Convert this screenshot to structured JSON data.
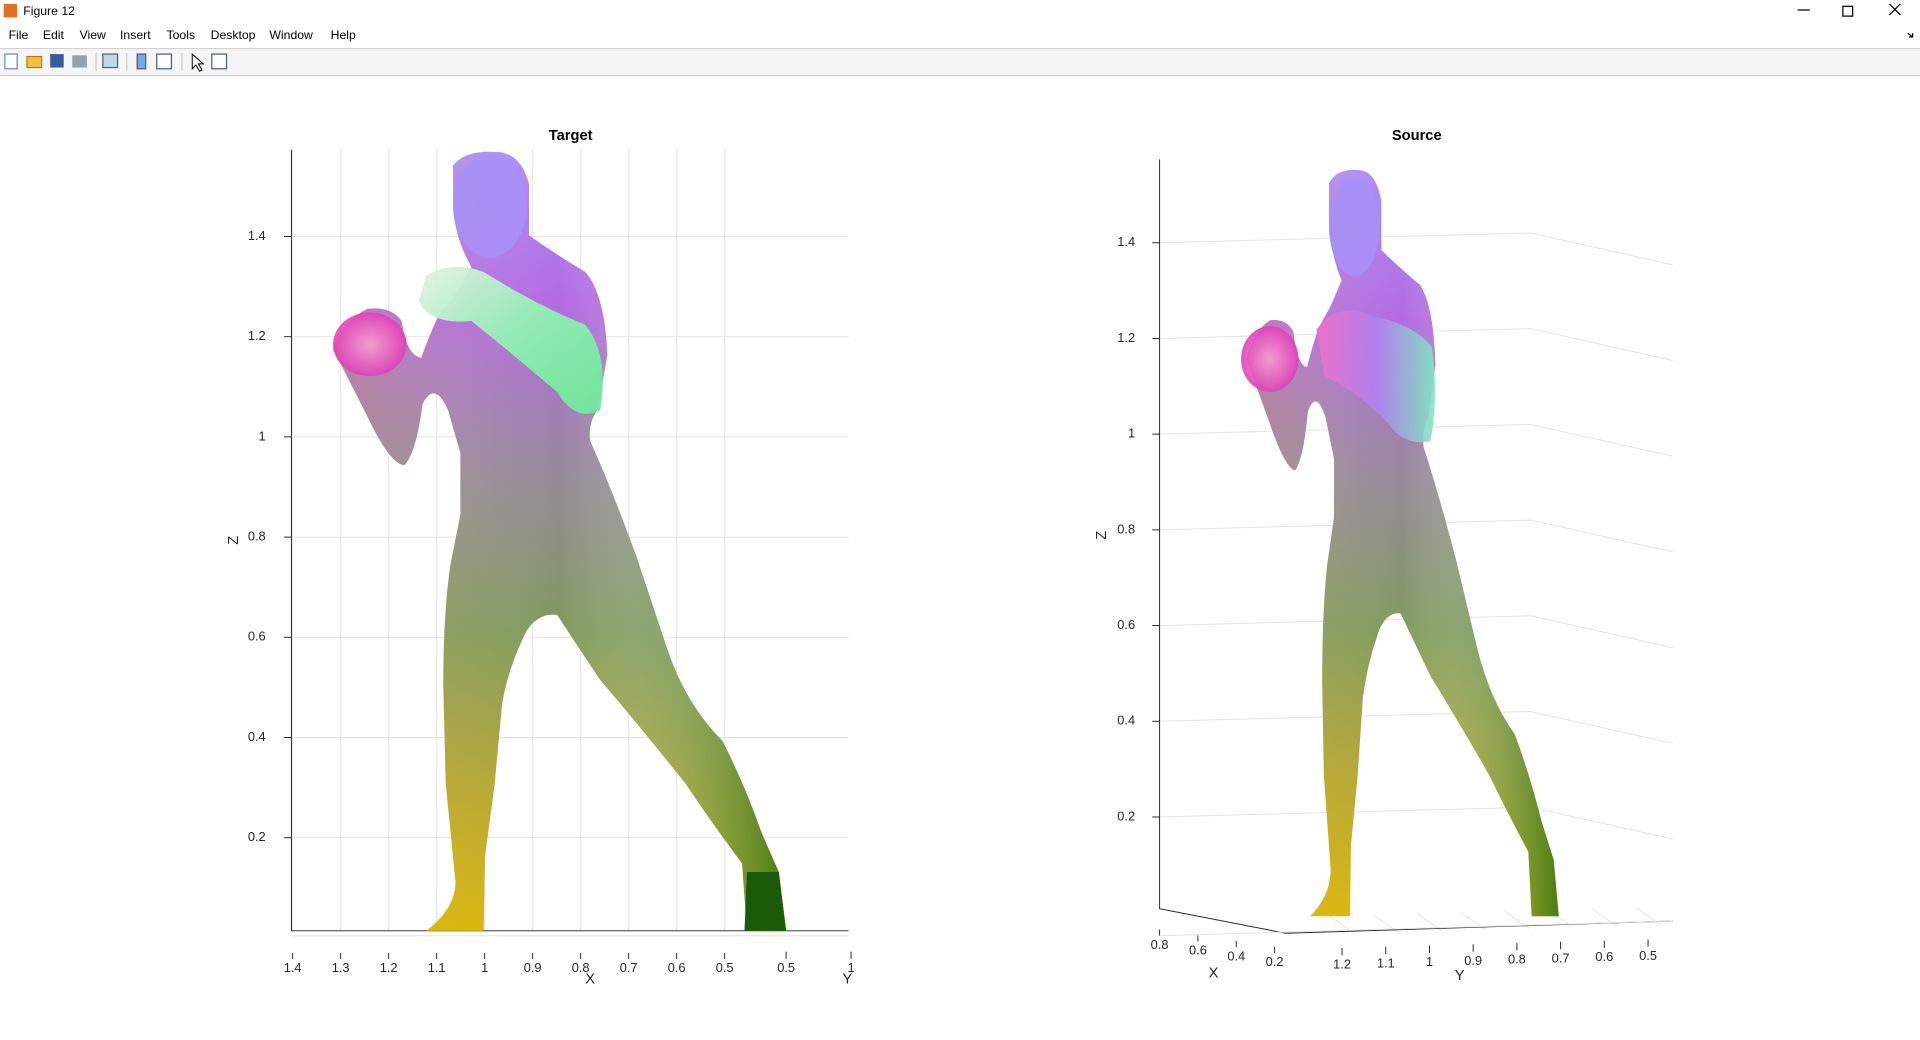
{
  "window": {
    "title": "Figure 12"
  },
  "menu": [
    "File",
    "Edit",
    "View",
    "Insert",
    "Tools",
    "Desktop",
    "Window",
    "Help"
  ],
  "plots": [
    {
      "title": "Target",
      "x_label": "X",
      "y_label": "Y",
      "z_label": "Z",
      "x_ticks": [
        1.4,
        1.3,
        1.2,
        1.1,
        1,
        0.9,
        0.8,
        0.7,
        0.6,
        0.5
      ],
      "y_ticks": [
        0.5,
        1
      ],
      "z_ticks": [
        0.2,
        0.4,
        0.6,
        0.8,
        1,
        1.2,
        1.4
      ]
    },
    {
      "title": "Source",
      "x_label": "X",
      "y_label": "Y",
      "z_label": "Z",
      "x_ticks": [
        0.8,
        0.6,
        0.4,
        0.2
      ],
      "y_ticks": [
        1.2,
        1.1,
        1,
        0.9,
        0.8,
        0.7,
        0.6,
        0.5
      ],
      "z_ticks": [
        0.2,
        0.4,
        0.6,
        0.8,
        1,
        1.2,
        1.4
      ]
    }
  ]
}
